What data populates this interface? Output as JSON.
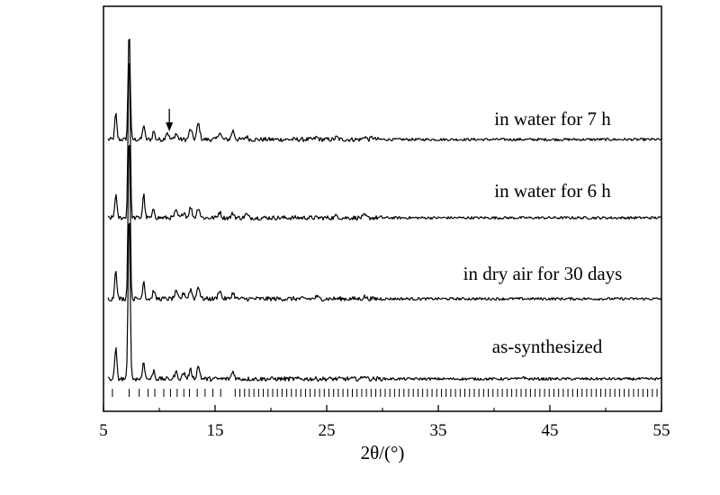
{
  "chart_data": {
    "type": "line",
    "title": "",
    "xlabel": "2θ/(°)",
    "ylabel": "",
    "xlim": [
      5,
      55
    ],
    "x_ticks": [
      5,
      15,
      25,
      35,
      45,
      55
    ],
    "y_ticks_shown": false,
    "grid": false,
    "annotations": [
      {
        "type": "arrow",
        "x": 10.9,
        "target_series": "in water for 7 h"
      }
    ],
    "reference_ticks": {
      "description": "vertical tick marks below the bottom pattern",
      "x_start": 5.8,
      "x_end": 55
    },
    "series": [
      {
        "name": "in water for 7 h",
        "offset": 3.0,
        "peaks": [
          {
            "x": 6.1,
            "y": 0.35
          },
          {
            "x": 7.3,
            "y": 1.5
          },
          {
            "x": 8.6,
            "y": 0.2
          },
          {
            "x": 9.5,
            "y": 0.12
          },
          {
            "x": 10.7,
            "y": 0.1
          },
          {
            "x": 11.5,
            "y": 0.08
          },
          {
            "x": 12.8,
            "y": 0.14
          },
          {
            "x": 13.5,
            "y": 0.22
          },
          {
            "x": 15.4,
            "y": 0.1
          },
          {
            "x": 16.6,
            "y": 0.12
          },
          {
            "x": 17.8,
            "y": 0.04
          },
          {
            "x": 24.1,
            "y": 0.03
          },
          {
            "x": 25.9,
            "y": 0.03
          },
          {
            "x": 28.4,
            "y": 0.04
          },
          {
            "x": 29.1,
            "y": 0.03
          }
        ]
      },
      {
        "name": "in water for 6 h",
        "offset": 2.0,
        "peaks": [
          {
            "x": 6.1,
            "y": 0.32
          },
          {
            "x": 7.3,
            "y": 2.3
          },
          {
            "x": 8.6,
            "y": 0.32
          },
          {
            "x": 9.5,
            "y": 0.12
          },
          {
            "x": 11.5,
            "y": 0.09
          },
          {
            "x": 12.2,
            "y": 0.08
          },
          {
            "x": 12.8,
            "y": 0.14
          },
          {
            "x": 13.5,
            "y": 0.14
          },
          {
            "x": 15.4,
            "y": 0.08
          },
          {
            "x": 16.6,
            "y": 0.06
          },
          {
            "x": 17.8,
            "y": 0.05
          },
          {
            "x": 25.9,
            "y": 0.03
          },
          {
            "x": 28.4,
            "y": 0.03
          }
        ]
      },
      {
        "name": "in dry air for 30 days",
        "offset": 1.0,
        "peaks": [
          {
            "x": 6.1,
            "y": 0.42
          },
          {
            "x": 7.3,
            "y": 2.3
          },
          {
            "x": 8.6,
            "y": 0.25
          },
          {
            "x": 9.5,
            "y": 0.12
          },
          {
            "x": 11.5,
            "y": 0.09
          },
          {
            "x": 12.2,
            "y": 0.08
          },
          {
            "x": 12.8,
            "y": 0.13
          },
          {
            "x": 13.5,
            "y": 0.17
          },
          {
            "x": 15.4,
            "y": 0.12
          },
          {
            "x": 16.6,
            "y": 0.08
          },
          {
            "x": 24.1,
            "y": 0.03
          },
          {
            "x": 28.4,
            "y": 0.03
          }
        ]
      },
      {
        "name": "as-synthesized",
        "offset": 0.0,
        "peaks": [
          {
            "x": 6.1,
            "y": 0.42
          },
          {
            "x": 7.3,
            "y": 2.3
          },
          {
            "x": 8.6,
            "y": 0.25
          },
          {
            "x": 9.5,
            "y": 0.12
          },
          {
            "x": 11.5,
            "y": 0.09
          },
          {
            "x": 12.2,
            "y": 0.08
          },
          {
            "x": 12.8,
            "y": 0.12
          },
          {
            "x": 13.5,
            "y": 0.17
          },
          {
            "x": 16.6,
            "y": 0.1
          },
          {
            "x": 28.4,
            "y": 0.05
          },
          {
            "x": 42.6,
            "y": 0.03
          }
        ]
      }
    ]
  }
}
